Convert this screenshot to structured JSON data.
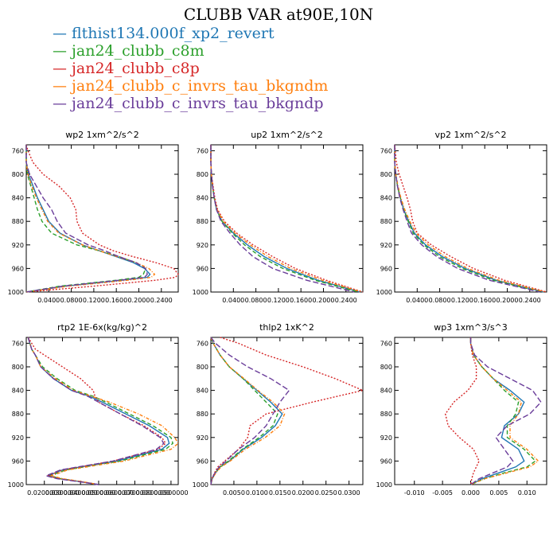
{
  "figure_title": "CLUBB VAR at90E,10N",
  "legend": [
    {
      "label": "flthist134.000f_xp2_revert",
      "color": "#1f77b4",
      "dash": "none"
    },
    {
      "label": "jan24_clubb_c8m",
      "color": "#2ca02c",
      "dash": "5,3"
    },
    {
      "label": "jan24_clubb_c8p",
      "color": "#d62728",
      "dash": "2,2"
    },
    {
      "label": "jan24_clubb_c_invrs_tau_bkgndm",
      "color": "#ff7f0e",
      "dash": "4,2,1,2"
    },
    {
      "label": "jan24_clubb_c_invrs_tau_bkgndp",
      "color": "#6a3d9a",
      "dash": "7,3"
    }
  ],
  "chart_data": [
    {
      "type": "line",
      "title": "wp2   1xm^2/s^2",
      "ylim": [
        1000,
        750
      ],
      "xlim": [
        0,
        0.27
      ],
      "y_ticks": [
        "760",
        "800",
        "840",
        "880",
        "920",
        "960",
        "1000"
      ],
      "x_ticks": [
        "0.0400",
        "0.0800",
        "0.1200",
        "0.1600",
        "0.2000",
        "0.2400"
      ],
      "y": [
        750,
        760,
        780,
        800,
        820,
        840,
        860,
        880,
        900,
        920,
        930,
        940,
        950,
        960,
        970,
        975,
        980,
        990,
        1000
      ],
      "series": [
        {
          "name": "flthist134.000f_xp2_revert",
          "x": [
            0,
            0,
            0,
            0.004,
            0.012,
            0.02,
            0.03,
            0.04,
            0.06,
            0.1,
            0.13,
            0.16,
            0.19,
            0.21,
            0.22,
            0.215,
            0.17,
            0.07,
            0
          ]
        },
        {
          "name": "jan24_clubb_c8m",
          "x": [
            0,
            0,
            0,
            0.002,
            0.008,
            0.014,
            0.02,
            0.028,
            0.045,
            0.09,
            0.13,
            0.165,
            0.195,
            0.212,
            0.208,
            0.2,
            0.16,
            0.06,
            0
          ]
        },
        {
          "name": "jan24_clubb_c8p",
          "x": [
            0,
            0.003,
            0.012,
            0.03,
            0.058,
            0.078,
            0.088,
            0.09,
            0.1,
            0.13,
            0.155,
            0.19,
            0.23,
            0.262,
            0.27,
            0.265,
            0.23,
            0.12,
            0
          ]
        },
        {
          "name": "jan24_clubb_c_invrs_tau_bkgndm",
          "x": [
            0,
            0,
            0,
            0.003,
            0.01,
            0.018,
            0.028,
            0.038,
            0.058,
            0.1,
            0.13,
            0.162,
            0.195,
            0.218,
            0.228,
            0.222,
            0.18,
            0.075,
            0
          ]
        },
        {
          "name": "jan24_clubb_c_invrs_tau_bkgndp",
          "x": [
            0,
            0,
            0,
            0.006,
            0.018,
            0.03,
            0.045,
            0.055,
            0.07,
            0.11,
            0.14,
            0.165,
            0.195,
            0.212,
            0.215,
            0.21,
            0.165,
            0.065,
            0
          ]
        }
      ]
    },
    {
      "type": "line",
      "title": "up2   1xm^2/s^2",
      "ylim": [
        1000,
        750
      ],
      "xlim": [
        0,
        0.27
      ],
      "y_ticks": [
        "760",
        "800",
        "840",
        "880",
        "920",
        "960",
        "1000"
      ],
      "x_ticks": [
        "0.0400",
        "0.0800",
        "0.1200",
        "0.1600",
        "0.2000",
        "0.2400"
      ],
      "y": [
        750,
        780,
        800,
        820,
        840,
        860,
        880,
        900,
        920,
        940,
        960,
        980,
        1000
      ],
      "series": [
        {
          "name": "flthist134.000f_xp2_revert",
          "x": [
            0,
            0,
            0.001,
            0.003,
            0.006,
            0.01,
            0.02,
            0.04,
            0.065,
            0.095,
            0.135,
            0.19,
            0.265
          ]
        },
        {
          "name": "jan24_clubb_c8m",
          "x": [
            0,
            0,
            0.001,
            0.003,
            0.006,
            0.01,
            0.02,
            0.038,
            0.06,
            0.088,
            0.128,
            0.185,
            0.262
          ]
        },
        {
          "name": "jan24_clubb_c8p",
          "x": [
            0,
            0,
            0.001,
            0.004,
            0.007,
            0.012,
            0.024,
            0.046,
            0.075,
            0.11,
            0.15,
            0.205,
            0.27
          ]
        },
        {
          "name": "jan24_clubb_c_invrs_tau_bkgndm",
          "x": [
            0,
            0,
            0.001,
            0.003,
            0.006,
            0.011,
            0.022,
            0.043,
            0.07,
            0.102,
            0.142,
            0.198,
            0.268
          ]
        },
        {
          "name": "jan24_clubb_c_invrs_tau_bkgndp",
          "x": [
            0,
            0,
            0.001,
            0.003,
            0.006,
            0.01,
            0.018,
            0.034,
            0.052,
            0.075,
            0.11,
            0.17,
            0.255
          ]
        }
      ]
    },
    {
      "type": "line",
      "title": "vp2   1xm^2/s^2",
      "ylim": [
        1000,
        750
      ],
      "xlim": [
        0,
        0.27
      ],
      "y_ticks": [
        "760",
        "800",
        "840",
        "880",
        "920",
        "960",
        "1000"
      ],
      "x_ticks": [
        "0.0400",
        "0.0800",
        "0.1200",
        "0.1600",
        "0.2000",
        "0.2400"
      ],
      "y": [
        750,
        780,
        800,
        820,
        840,
        860,
        880,
        900,
        920,
        940,
        960,
        980,
        1000
      ],
      "series": [
        {
          "name": "flthist134.000f_xp2_revert",
          "x": [
            0,
            0,
            0.002,
            0.005,
            0.01,
            0.016,
            0.025,
            0.035,
            0.055,
            0.085,
            0.125,
            0.18,
            0.265
          ]
        },
        {
          "name": "jan24_clubb_c8m",
          "x": [
            0,
            0,
            0.002,
            0.005,
            0.01,
            0.016,
            0.024,
            0.033,
            0.052,
            0.08,
            0.12,
            0.175,
            0.262
          ]
        },
        {
          "name": "jan24_clubb_c8p",
          "x": [
            0,
            0.003,
            0.008,
            0.015,
            0.022,
            0.028,
            0.032,
            0.04,
            0.065,
            0.1,
            0.14,
            0.195,
            0.27
          ]
        },
        {
          "name": "jan24_clubb_c_invrs_tau_bkgndm",
          "x": [
            0,
            0,
            0.002,
            0.006,
            0.011,
            0.018,
            0.027,
            0.038,
            0.06,
            0.09,
            0.13,
            0.185,
            0.268
          ]
        },
        {
          "name": "jan24_clubb_c_invrs_tau_bkgndp",
          "x": [
            0,
            0,
            0.002,
            0.005,
            0.009,
            0.015,
            0.022,
            0.03,
            0.048,
            0.075,
            0.112,
            0.168,
            0.258
          ]
        }
      ]
    },
    {
      "type": "line",
      "title": "rtp2   1E-6x(kg/kg)^2",
      "ylim": [
        1000,
        750
      ],
      "xlim": [
        0.01,
        0.094
      ],
      "y_ticks": [
        "760",
        "800",
        "840",
        "880",
        "920",
        "960",
        "1000"
      ],
      "x_ticks": [
        "0.0200000",
        "0.0300000",
        "0.0400000",
        "0.0500000",
        "0.0600000",
        "0.0700000",
        "0.0800000",
        "0.0900000"
      ],
      "y": [
        750,
        770,
        780,
        800,
        820,
        840,
        850,
        860,
        880,
        900,
        920,
        930,
        940,
        960,
        975,
        985,
        990,
        995,
        1000
      ],
      "series": [
        {
          "name": "flthist134.000f_xp2_revert",
          "x": [
            0.011,
            0.013,
            0.015,
            0.018,
            0.025,
            0.035,
            0.045,
            0.052,
            0.065,
            0.078,
            0.088,
            0.089,
            0.085,
            0.06,
            0.03,
            0.022,
            0.028,
            0.04,
            0.05
          ]
        },
        {
          "name": "jan24_clubb_c8m",
          "x": [
            0.011,
            0.013,
            0.015,
            0.019,
            0.027,
            0.037,
            0.047,
            0.054,
            0.067,
            0.08,
            0.09,
            0.091,
            0.087,
            0.062,
            0.032,
            0.023,
            0.029,
            0.04,
            0.05
          ]
        },
        {
          "name": "jan24_clubb_c8p",
          "x": [
            0.011,
            0.015,
            0.02,
            0.03,
            0.04,
            0.047,
            0.048,
            0.05,
            0.062,
            0.075,
            0.085,
            0.087,
            0.083,
            0.058,
            0.03,
            0.022,
            0.028,
            0.04,
            0.05
          ]
        },
        {
          "name": "jan24_clubb_c_invrs_tau_bkgndm",
          "x": [
            0.011,
            0.013,
            0.015,
            0.018,
            0.026,
            0.036,
            0.046,
            0.056,
            0.072,
            0.085,
            0.092,
            0.094,
            0.09,
            0.064,
            0.033,
            0.024,
            0.03,
            0.041,
            0.05
          ]
        },
        {
          "name": "jan24_clubb_c_invrs_tau_bkgndp",
          "x": [
            0.011,
            0.013,
            0.015,
            0.018,
            0.025,
            0.035,
            0.044,
            0.05,
            0.062,
            0.074,
            0.084,
            0.086,
            0.082,
            0.058,
            0.029,
            0.021,
            0.027,
            0.039,
            0.05
          ]
        }
      ]
    },
    {
      "type": "line",
      "title": "thlp2   1xK^2",
      "ylim": [
        1000,
        750
      ],
      "xlim": [
        0,
        0.033
      ],
      "y_ticks": [
        "760",
        "800",
        "840",
        "880",
        "920",
        "960",
        "1000"
      ],
      "x_ticks": [
        "0.0050",
        "0.0100",
        "0.0150",
        "0.0200",
        "0.0250",
        "0.0300"
      ],
      "y": [
        750,
        760,
        780,
        800,
        820,
        840,
        860,
        880,
        900,
        920,
        940,
        960,
        970,
        980,
        990,
        1000
      ],
      "series": [
        {
          "name": "flthist134.000f_xp2_revert",
          "x": [
            0,
            0.0005,
            0.002,
            0.004,
            0.007,
            0.01,
            0.013,
            0.0155,
            0.014,
            0.011,
            0.007,
            0.004,
            0.002,
            0.001,
            0.0003,
            0
          ]
        },
        {
          "name": "jan24_clubb_c8m",
          "x": [
            0,
            0.0005,
            0.002,
            0.004,
            0.007,
            0.0095,
            0.012,
            0.0145,
            0.0135,
            0.0105,
            0.0068,
            0.0038,
            0.002,
            0.001,
            0.0003,
            0
          ]
        },
        {
          "name": "jan24_clubb_c8p",
          "x": [
            0.002,
            0.006,
            0.012,
            0.02,
            0.027,
            0.033,
            0.022,
            0.012,
            0.0085,
            0.008,
            0.006,
            0.003,
            0.0015,
            0.0008,
            0.0002,
            0
          ]
        },
        {
          "name": "jan24_clubb_c_invrs_tau_bkgndm",
          "x": [
            0,
            0.0005,
            0.002,
            0.004,
            0.0072,
            0.0102,
            0.0135,
            0.016,
            0.015,
            0.0118,
            0.0075,
            0.0042,
            0.0022,
            0.0011,
            0.0003,
            0
          ]
        },
        {
          "name": "jan24_clubb_c_invrs_tau_bkgndp",
          "x": [
            0,
            0.001,
            0.004,
            0.008,
            0.013,
            0.017,
            0.015,
            0.0135,
            0.012,
            0.0095,
            0.006,
            0.0033,
            0.0018,
            0.0009,
            0.0002,
            0
          ]
        }
      ]
    },
    {
      "type": "line",
      "title": "wp3   1xm^3/s^3",
      "ylim": [
        1000,
        750
      ],
      "xlim": [
        -0.0135,
        0.0135
      ],
      "y_ticks": [
        "760",
        "800",
        "840",
        "880",
        "920",
        "960",
        "1000"
      ],
      "x_ticks": [
        "-0.010",
        "-0.005",
        "0.000",
        "0.005",
        "0.010"
      ],
      "y": [
        750,
        760,
        780,
        800,
        820,
        840,
        860,
        880,
        900,
        920,
        940,
        960,
        970,
        980,
        990,
        1000
      ],
      "series": [
        {
          "name": "flthist134.000f_xp2_revert",
          "x": [
            0,
            0,
            0.0005,
            0.002,
            0.004,
            0.007,
            0.0095,
            0.0085,
            0.006,
            0.0055,
            0.0085,
            0.0095,
            0.008,
            0.005,
            0.002,
            0
          ]
        },
        {
          "name": "jan24_clubb_c8m",
          "x": [
            0,
            0,
            0.0005,
            0.002,
            0.004,
            0.006,
            0.0085,
            0.008,
            0.0065,
            0.0065,
            0.0095,
            0.0115,
            0.01,
            0.006,
            0.0025,
            0
          ]
        },
        {
          "name": "jan24_clubb_c8p",
          "x": [
            0,
            0,
            0.0003,
            0.001,
            0.001,
            -0.0005,
            -0.003,
            -0.0045,
            -0.004,
            -0.002,
            0.0005,
            0.0015,
            0.001,
            0.0005,
            0.0002,
            0
          ]
        },
        {
          "name": "jan24_clubb_c_invrs_tau_bkgndm",
          "x": [
            0,
            0,
            0.0005,
            0.002,
            0.004,
            0.0065,
            0.009,
            0.0085,
            0.007,
            0.007,
            0.01,
            0.012,
            0.0105,
            0.0065,
            0.0025,
            0
          ]
        },
        {
          "name": "jan24_clubb_c_invrs_tau_bkgndp",
          "x": [
            0,
            0,
            0.0007,
            0.003,
            0.007,
            0.011,
            0.0125,
            0.0105,
            0.0065,
            0.0045,
            0.006,
            0.0075,
            0.0065,
            0.004,
            0.0015,
            0
          ]
        }
      ]
    }
  ]
}
